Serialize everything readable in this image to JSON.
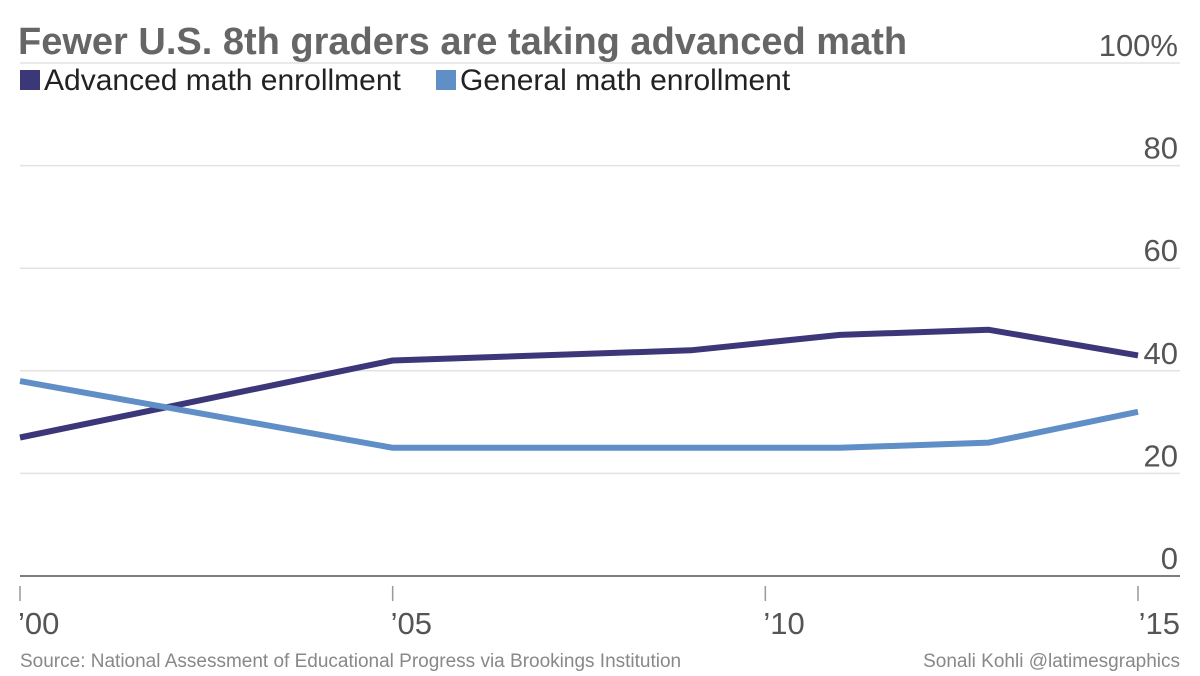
{
  "chart_data": {
    "type": "line",
    "title": "Fewer U.S. 8th graders are taking advanced math",
    "x": [
      2000,
      2005,
      2009,
      2011,
      2013,
      2015
    ],
    "x_ticks": [
      2000,
      2005,
      2010,
      2015
    ],
    "x_tick_labels": [
      "’00",
      "’05",
      "’10",
      "’15"
    ],
    "xlim": [
      2000,
      2015
    ],
    "ylim": [
      0,
      100
    ],
    "y_ticks": [
      0,
      20,
      40,
      60,
      80,
      100
    ],
    "y_tick_labels": [
      "0",
      "20",
      "40",
      "60",
      "80",
      "100%"
    ],
    "y_axis_side": "right",
    "grid": true,
    "legend_placement": "top-left",
    "series": [
      {
        "name": "Advanced math enrollment",
        "color": "#3b3779",
        "values": [
          27,
          42,
          44,
          47,
          48,
          43
        ]
      },
      {
        "name": "General math enrollment",
        "color": "#5f8fc6",
        "values": [
          38,
          25,
          25,
          25,
          26,
          32
        ]
      }
    ]
  },
  "footer": {
    "source": "Source: National Assessment of Educational Progress via Brookings Institution",
    "credit": "Sonali Kohli @latimesgraphics"
  }
}
